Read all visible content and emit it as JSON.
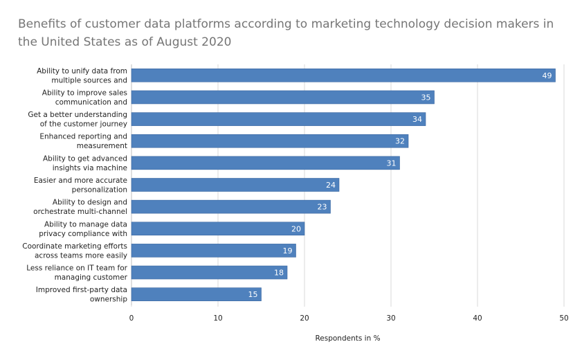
{
  "chart_data": {
    "type": "bar",
    "orientation": "horizontal",
    "title": "Benefits of customer data platforms according to marketing technology decision makers in the United States as of August 2020",
    "xlabel": "Respondents in %",
    "ylabel": "",
    "xlim": [
      0,
      50
    ],
    "x_ticks": [
      "0",
      "10",
      "20",
      "30",
      "40",
      "50"
    ],
    "grid": true,
    "bar_color": "#4f81bd",
    "categories": [
      [
        "Ability to unify data from",
        "multiple sources and"
      ],
      [
        "Ability to improve sales",
        "communication and"
      ],
      [
        "Get a better understanding",
        "of the customer journey"
      ],
      [
        "Enhanced reporting and",
        "measurement"
      ],
      [
        "Ability to get advanced",
        "insights via machine"
      ],
      [
        "Easier and more accurate",
        "personalization"
      ],
      [
        "Ability to design and",
        "orchestrate multi-channel"
      ],
      [
        "Ability to manage data",
        "privacy compliance with"
      ],
      [
        "Coordinate marketing efforts",
        "across teams more easily"
      ],
      [
        "Less reliance on IT team for",
        "managing customer"
      ],
      [
        "Improved first-party data",
        "ownership"
      ]
    ],
    "values": [
      49,
      35,
      34,
      32,
      31,
      24,
      23,
      20,
      19,
      18,
      15
    ],
    "value_labels": [
      "49",
      "35",
      "34",
      "32",
      "31",
      "24",
      "23",
      "20",
      "19",
      "18",
      "15"
    ]
  }
}
